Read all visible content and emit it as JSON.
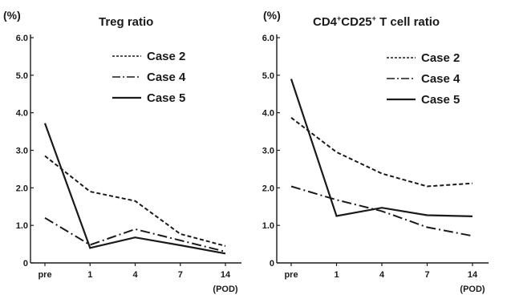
{
  "chart_data": [
    {
      "type": "line",
      "title": "Treg ratio",
      "ylabel": "(%)",
      "xlabel": "(POD)",
      "categories": [
        "pre",
        "1",
        "4",
        "7",
        "14"
      ],
      "yticks": [
        "0",
        "1.0",
        "2.0",
        "3.0",
        "4.0",
        "5.0",
        "6.0"
      ],
      "ylim": [
        0,
        6
      ],
      "grid": false,
      "legend_position": "top-right",
      "series": [
        {
          "name": "Case 2",
          "dash": "dashed",
          "values": [
            2.85,
            1.9,
            1.65,
            0.77,
            0.45
          ]
        },
        {
          "name": "Case 4",
          "dash": "dash-dot",
          "values": [
            1.2,
            0.48,
            0.9,
            0.6,
            0.3
          ]
        },
        {
          "name": "Case 5",
          "dash": "solid",
          "values": [
            3.72,
            0.4,
            0.68,
            0.47,
            0.25
          ]
        }
      ]
    },
    {
      "type": "line",
      "title_parts": [
        "CD4",
        "+",
        "CD25",
        "+",
        " T cell ratio"
      ],
      "ylabel": "(%)",
      "xlabel": "(POD)",
      "categories": [
        "pre",
        "1",
        "4",
        "7",
        "14"
      ],
      "yticks": [
        "0",
        "1.0",
        "2.0",
        "3.0",
        "4.0",
        "5.0",
        "6.0"
      ],
      "ylim": [
        0,
        6
      ],
      "grid": false,
      "legend_position": "top-right",
      "series": [
        {
          "name": "Case 2",
          "dash": "dashed",
          "values": [
            3.87,
            2.95,
            2.38,
            2.04,
            2.12
          ]
        },
        {
          "name": "Case 4",
          "dash": "dash-dot",
          "values": [
            2.04,
            1.68,
            1.38,
            0.95,
            0.72
          ]
        },
        {
          "name": "Case 5",
          "dash": "solid",
          "values": [
            4.9,
            1.25,
            1.47,
            1.27,
            1.24
          ]
        }
      ]
    }
  ],
  "colors": {
    "ink": "#1a1a1a",
    "background": "#ffffff"
  }
}
